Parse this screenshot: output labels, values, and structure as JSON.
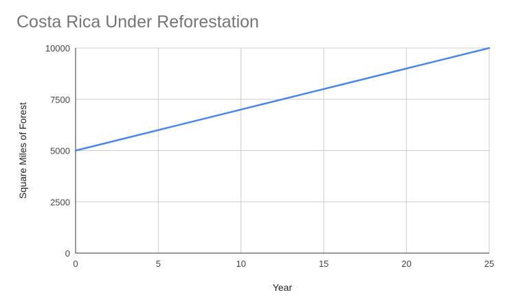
{
  "chart_data": {
    "type": "line",
    "title": "Costa Rica Under Reforestation",
    "xlabel": "Year",
    "ylabel": "Square Miles of Forest",
    "xlim": [
      0,
      25
    ],
    "ylim": [
      0,
      10000
    ],
    "x_ticks": [
      0,
      5,
      10,
      15,
      20,
      25
    ],
    "y_ticks": [
      0,
      2500,
      5000,
      7500,
      10000
    ],
    "grid": true,
    "legend": "none",
    "series": [
      {
        "color": "#4a86e8",
        "x": [
          0,
          5,
          10,
          15,
          20,
          25
        ],
        "y": [
          5000,
          6000,
          7000,
          8000,
          9000,
          10000
        ]
      }
    ]
  }
}
